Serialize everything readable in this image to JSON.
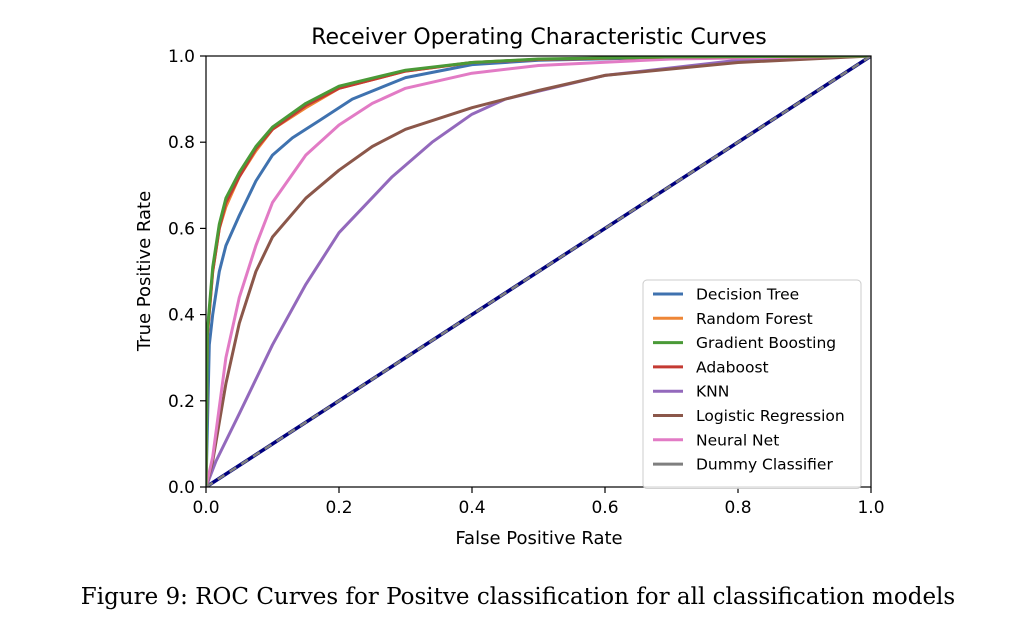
{
  "caption": "Figure 9: ROC Curves for Positve classification for all classification models",
  "chart_data": {
    "type": "line",
    "title": "Receiver Operating Characteristic Curves",
    "xlabel": "False Positive Rate",
    "ylabel": "True Positive Rate",
    "xlim": [
      0,
      1
    ],
    "ylim": [
      0,
      1
    ],
    "xticks": [
      "0.0",
      "0.2",
      "0.4",
      "0.6",
      "0.8",
      "1.0"
    ],
    "yticks": [
      "0.0",
      "0.2",
      "0.4",
      "0.6",
      "0.8",
      "1.0"
    ],
    "grid": false,
    "legend_position": "lower-right",
    "series": [
      {
        "name": "Decision Tree",
        "color": "#3f72af",
        "dash": false,
        "points": [
          [
            0,
            0
          ],
          [
            0.005,
            0.33
          ],
          [
            0.01,
            0.4
          ],
          [
            0.02,
            0.5
          ],
          [
            0.03,
            0.56
          ],
          [
            0.05,
            0.63
          ],
          [
            0.075,
            0.71
          ],
          [
            0.1,
            0.77
          ],
          [
            0.13,
            0.81
          ],
          [
            0.17,
            0.85
          ],
          [
            0.22,
            0.9
          ],
          [
            0.3,
            0.95
          ],
          [
            0.4,
            0.98
          ],
          [
            0.5,
            0.99
          ],
          [
            0.7,
            0.997
          ],
          [
            1,
            1
          ]
        ]
      },
      {
        "name": "Random Forest",
        "color": "#ee8636",
        "dash": false,
        "points": [
          [
            0,
            0
          ],
          [
            0.002,
            0.35
          ],
          [
            0.01,
            0.5
          ],
          [
            0.02,
            0.6
          ],
          [
            0.03,
            0.65
          ],
          [
            0.05,
            0.72
          ],
          [
            0.075,
            0.78
          ],
          [
            0.1,
            0.83
          ],
          [
            0.15,
            0.88
          ],
          [
            0.2,
            0.925
          ],
          [
            0.3,
            0.965
          ],
          [
            0.4,
            0.985
          ],
          [
            0.5,
            0.992
          ],
          [
            0.7,
            0.998
          ],
          [
            1,
            1
          ]
        ]
      },
      {
        "name": "Gradient Boosting",
        "color": "#4a9a37",
        "dash": false,
        "points": [
          [
            0,
            0
          ],
          [
            0.002,
            0.36
          ],
          [
            0.01,
            0.51
          ],
          [
            0.02,
            0.61
          ],
          [
            0.03,
            0.67
          ],
          [
            0.05,
            0.73
          ],
          [
            0.075,
            0.79
          ],
          [
            0.1,
            0.835
          ],
          [
            0.15,
            0.89
          ],
          [
            0.2,
            0.93
          ],
          [
            0.3,
            0.967
          ],
          [
            0.4,
            0.985
          ],
          [
            0.5,
            0.993
          ],
          [
            0.7,
            0.998
          ],
          [
            1,
            1
          ]
        ]
      },
      {
        "name": "Adaboost",
        "color": "#c43a33",
        "dash": false,
        "points": [
          [
            0,
            0
          ],
          [
            0.002,
            0.35
          ],
          [
            0.01,
            0.5
          ],
          [
            0.02,
            0.6
          ],
          [
            0.03,
            0.66
          ],
          [
            0.05,
            0.72
          ],
          [
            0.075,
            0.785
          ],
          [
            0.1,
            0.83
          ],
          [
            0.15,
            0.885
          ],
          [
            0.2,
            0.925
          ],
          [
            0.3,
            0.965
          ],
          [
            0.4,
            0.985
          ],
          [
            0.5,
            0.992
          ],
          [
            0.7,
            0.998
          ],
          [
            1,
            1
          ]
        ]
      },
      {
        "name": "KNN",
        "color": "#9369bc",
        "dash": false,
        "points": [
          [
            0,
            0
          ],
          [
            0.015,
            0.06
          ],
          [
            0.05,
            0.17
          ],
          [
            0.1,
            0.33
          ],
          [
            0.15,
            0.47
          ],
          [
            0.2,
            0.59
          ],
          [
            0.28,
            0.72
          ],
          [
            0.34,
            0.8
          ],
          [
            0.4,
            0.865
          ],
          [
            0.45,
            0.9
          ],
          [
            0.6,
            0.955
          ],
          [
            0.8,
            0.99
          ],
          [
            1,
            1
          ]
        ]
      },
      {
        "name": "Logistic Regression",
        "color": "#8b574a",
        "dash": false,
        "points": [
          [
            0,
            0
          ],
          [
            0.01,
            0.06
          ],
          [
            0.03,
            0.24
          ],
          [
            0.05,
            0.38
          ],
          [
            0.075,
            0.5
          ],
          [
            0.1,
            0.58
          ],
          [
            0.15,
            0.67
          ],
          [
            0.2,
            0.735
          ],
          [
            0.25,
            0.79
          ],
          [
            0.3,
            0.83
          ],
          [
            0.4,
            0.88
          ],
          [
            0.5,
            0.92
          ],
          [
            0.6,
            0.955
          ],
          [
            0.8,
            0.985
          ],
          [
            1,
            1
          ]
        ]
      },
      {
        "name": "Neural Net",
        "color": "#e27bc5",
        "dash": false,
        "points": [
          [
            0,
            0
          ],
          [
            0.01,
            0.07
          ],
          [
            0.03,
            0.3
          ],
          [
            0.05,
            0.44
          ],
          [
            0.075,
            0.56
          ],
          [
            0.1,
            0.66
          ],
          [
            0.15,
            0.77
          ],
          [
            0.2,
            0.84
          ],
          [
            0.25,
            0.89
          ],
          [
            0.3,
            0.925
          ],
          [
            0.4,
            0.96
          ],
          [
            0.5,
            0.978
          ],
          [
            0.7,
            0.993
          ],
          [
            1,
            1
          ]
        ]
      },
      {
        "name": "Dummy Classifier",
        "color": "#7f7f7f",
        "dash": true,
        "points": [
          [
            0,
            0
          ],
          [
            1,
            1
          ]
        ]
      }
    ],
    "reference_line": {
      "color": "#000080",
      "points": [
        [
          0,
          0
        ],
        [
          1,
          1
        ]
      ]
    }
  }
}
